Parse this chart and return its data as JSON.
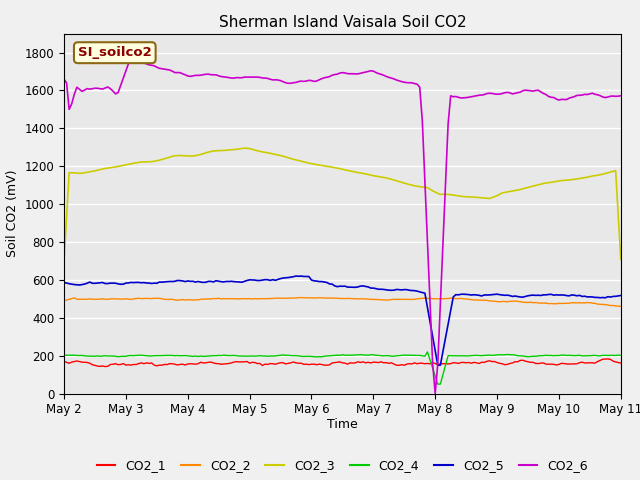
{
  "title": "Sherman Island Vaisala Soil CO2",
  "ylabel": "Soil CO2 (mV)",
  "xlabel": "Time",
  "annotation": "SI_soilco2",
  "legend_labels": [
    "CO2_1",
    "CO2_2",
    "CO2_3",
    "CO2_4",
    "CO2_5",
    "CO2_6"
  ],
  "colors": {
    "CO2_1": "#ff0000",
    "CO2_2": "#ff8800",
    "CO2_3": "#cccc00",
    "CO2_4": "#00cc00",
    "CO2_5": "#0000cc",
    "CO2_6": "#cc00cc"
  },
  "ylim": [
    0,
    1900
  ],
  "plot_bg": "#e8e8e8",
  "fig_bg": "#f0f0f0",
  "x_tick_labels": [
    "May 2",
    "May 3",
    "May 4",
    "May 5",
    "May 6",
    "May 7",
    "May 8",
    "May 9",
    "May 10",
    "May 11"
  ],
  "x_tick_positions": [
    0,
    24,
    48,
    72,
    96,
    120,
    144,
    168,
    192,
    216
  ],
  "yticks": [
    0,
    200,
    400,
    600,
    800,
    1000,
    1200,
    1400,
    1600,
    1800
  ]
}
